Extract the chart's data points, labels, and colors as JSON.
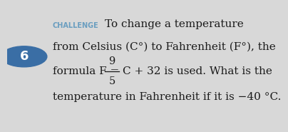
{
  "bg_color": "#d8d8d8",
  "circle_color": "#3a6ea5",
  "circle_number": "6",
  "challenge_label": "CHALLENGE",
  "challenge_color": "#6a9ec0",
  "line1": "To change a temperature",
  "line2": "from Celsius (C°) to Fahrenheit (F°), the",
  "line3_pre": "formula F = ",
  "line3_frac_num": "9",
  "line3_frac_den": "5",
  "line3_post": "C + 32 is used. What is the",
  "line4": "temperature in Fahrenheit if it is −40 °C.",
  "text_color": "#1a1a1a",
  "font_size_main": 11,
  "font_size_challenge": 7.0,
  "font_size_circle": 13
}
